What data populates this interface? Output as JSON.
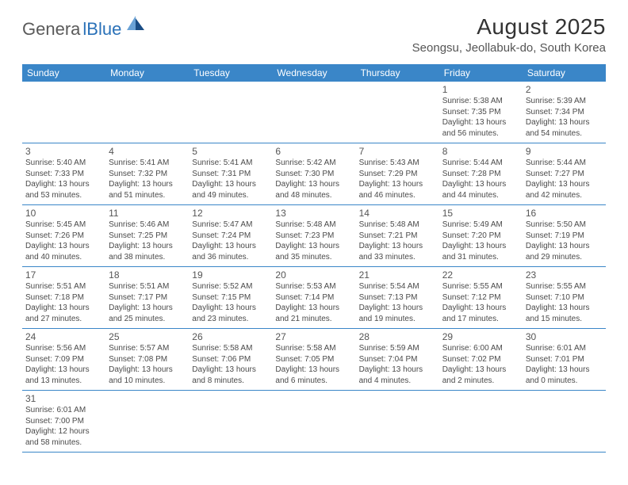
{
  "logo": {
    "text_gray": "Genera",
    "text_blue": "lBlue",
    "shape_color_light": "#6aa2d6",
    "shape_color_dark": "#1a4d85"
  },
  "title": {
    "month_year": "August 2025",
    "location": "Seongsu, Jeollabuk-do, South Korea"
  },
  "colors": {
    "header_bg": "#3a86c8",
    "header_text": "#ffffff",
    "row_divider": "#3a86c8",
    "text": "#4a4a4a",
    "daynum": "#555555",
    "background": "#ffffff"
  },
  "calendar": {
    "day_headers": [
      "Sunday",
      "Monday",
      "Tuesday",
      "Wednesday",
      "Thursday",
      "Friday",
      "Saturday"
    ],
    "weeks": [
      [
        null,
        null,
        null,
        null,
        null,
        {
          "n": "1",
          "sunrise": "5:38 AM",
          "sunset": "7:35 PM",
          "dh": "13",
          "dm": "56"
        },
        {
          "n": "2",
          "sunrise": "5:39 AM",
          "sunset": "7:34 PM",
          "dh": "13",
          "dm": "54"
        }
      ],
      [
        {
          "n": "3",
          "sunrise": "5:40 AM",
          "sunset": "7:33 PM",
          "dh": "13",
          "dm": "53"
        },
        {
          "n": "4",
          "sunrise": "5:41 AM",
          "sunset": "7:32 PM",
          "dh": "13",
          "dm": "51"
        },
        {
          "n": "5",
          "sunrise": "5:41 AM",
          "sunset": "7:31 PM",
          "dh": "13",
          "dm": "49"
        },
        {
          "n": "6",
          "sunrise": "5:42 AM",
          "sunset": "7:30 PM",
          "dh": "13",
          "dm": "48"
        },
        {
          "n": "7",
          "sunrise": "5:43 AM",
          "sunset": "7:29 PM",
          "dh": "13",
          "dm": "46"
        },
        {
          "n": "8",
          "sunrise": "5:44 AM",
          "sunset": "7:28 PM",
          "dh": "13",
          "dm": "44"
        },
        {
          "n": "9",
          "sunrise": "5:44 AM",
          "sunset": "7:27 PM",
          "dh": "13",
          "dm": "42"
        }
      ],
      [
        {
          "n": "10",
          "sunrise": "5:45 AM",
          "sunset": "7:26 PM",
          "dh": "13",
          "dm": "40"
        },
        {
          "n": "11",
          "sunrise": "5:46 AM",
          "sunset": "7:25 PM",
          "dh": "13",
          "dm": "38"
        },
        {
          "n": "12",
          "sunrise": "5:47 AM",
          "sunset": "7:24 PM",
          "dh": "13",
          "dm": "36"
        },
        {
          "n": "13",
          "sunrise": "5:48 AM",
          "sunset": "7:23 PM",
          "dh": "13",
          "dm": "35"
        },
        {
          "n": "14",
          "sunrise": "5:48 AM",
          "sunset": "7:21 PM",
          "dh": "13",
          "dm": "33"
        },
        {
          "n": "15",
          "sunrise": "5:49 AM",
          "sunset": "7:20 PM",
          "dh": "13",
          "dm": "31"
        },
        {
          "n": "16",
          "sunrise": "5:50 AM",
          "sunset": "7:19 PM",
          "dh": "13",
          "dm": "29"
        }
      ],
      [
        {
          "n": "17",
          "sunrise": "5:51 AM",
          "sunset": "7:18 PM",
          "dh": "13",
          "dm": "27"
        },
        {
          "n": "18",
          "sunrise": "5:51 AM",
          "sunset": "7:17 PM",
          "dh": "13",
          "dm": "25"
        },
        {
          "n": "19",
          "sunrise": "5:52 AM",
          "sunset": "7:15 PM",
          "dh": "13",
          "dm": "23"
        },
        {
          "n": "20",
          "sunrise": "5:53 AM",
          "sunset": "7:14 PM",
          "dh": "13",
          "dm": "21"
        },
        {
          "n": "21",
          "sunrise": "5:54 AM",
          "sunset": "7:13 PM",
          "dh": "13",
          "dm": "19"
        },
        {
          "n": "22",
          "sunrise": "5:55 AM",
          "sunset": "7:12 PM",
          "dh": "13",
          "dm": "17"
        },
        {
          "n": "23",
          "sunrise": "5:55 AM",
          "sunset": "7:10 PM",
          "dh": "13",
          "dm": "15"
        }
      ],
      [
        {
          "n": "24",
          "sunrise": "5:56 AM",
          "sunset": "7:09 PM",
          "dh": "13",
          "dm": "13"
        },
        {
          "n": "25",
          "sunrise": "5:57 AM",
          "sunset": "7:08 PM",
          "dh": "13",
          "dm": "10"
        },
        {
          "n": "26",
          "sunrise": "5:58 AM",
          "sunset": "7:06 PM",
          "dh": "13",
          "dm": "8"
        },
        {
          "n": "27",
          "sunrise": "5:58 AM",
          "sunset": "7:05 PM",
          "dh": "13",
          "dm": "6"
        },
        {
          "n": "28",
          "sunrise": "5:59 AM",
          "sunset": "7:04 PM",
          "dh": "13",
          "dm": "4"
        },
        {
          "n": "29",
          "sunrise": "6:00 AM",
          "sunset": "7:02 PM",
          "dh": "13",
          "dm": "2"
        },
        {
          "n": "30",
          "sunrise": "6:01 AM",
          "sunset": "7:01 PM",
          "dh": "13",
          "dm": "0"
        }
      ],
      [
        {
          "n": "31",
          "sunrise": "6:01 AM",
          "sunset": "7:00 PM",
          "dh": "12",
          "dm": "58"
        },
        null,
        null,
        null,
        null,
        null,
        null
      ]
    ],
    "labels": {
      "sunrise_prefix": "Sunrise: ",
      "sunset_prefix": "Sunset: ",
      "daylight_prefix": "Daylight: ",
      "hours_word": " hours",
      "and_word": "and ",
      "minutes_word": " minutes."
    }
  }
}
